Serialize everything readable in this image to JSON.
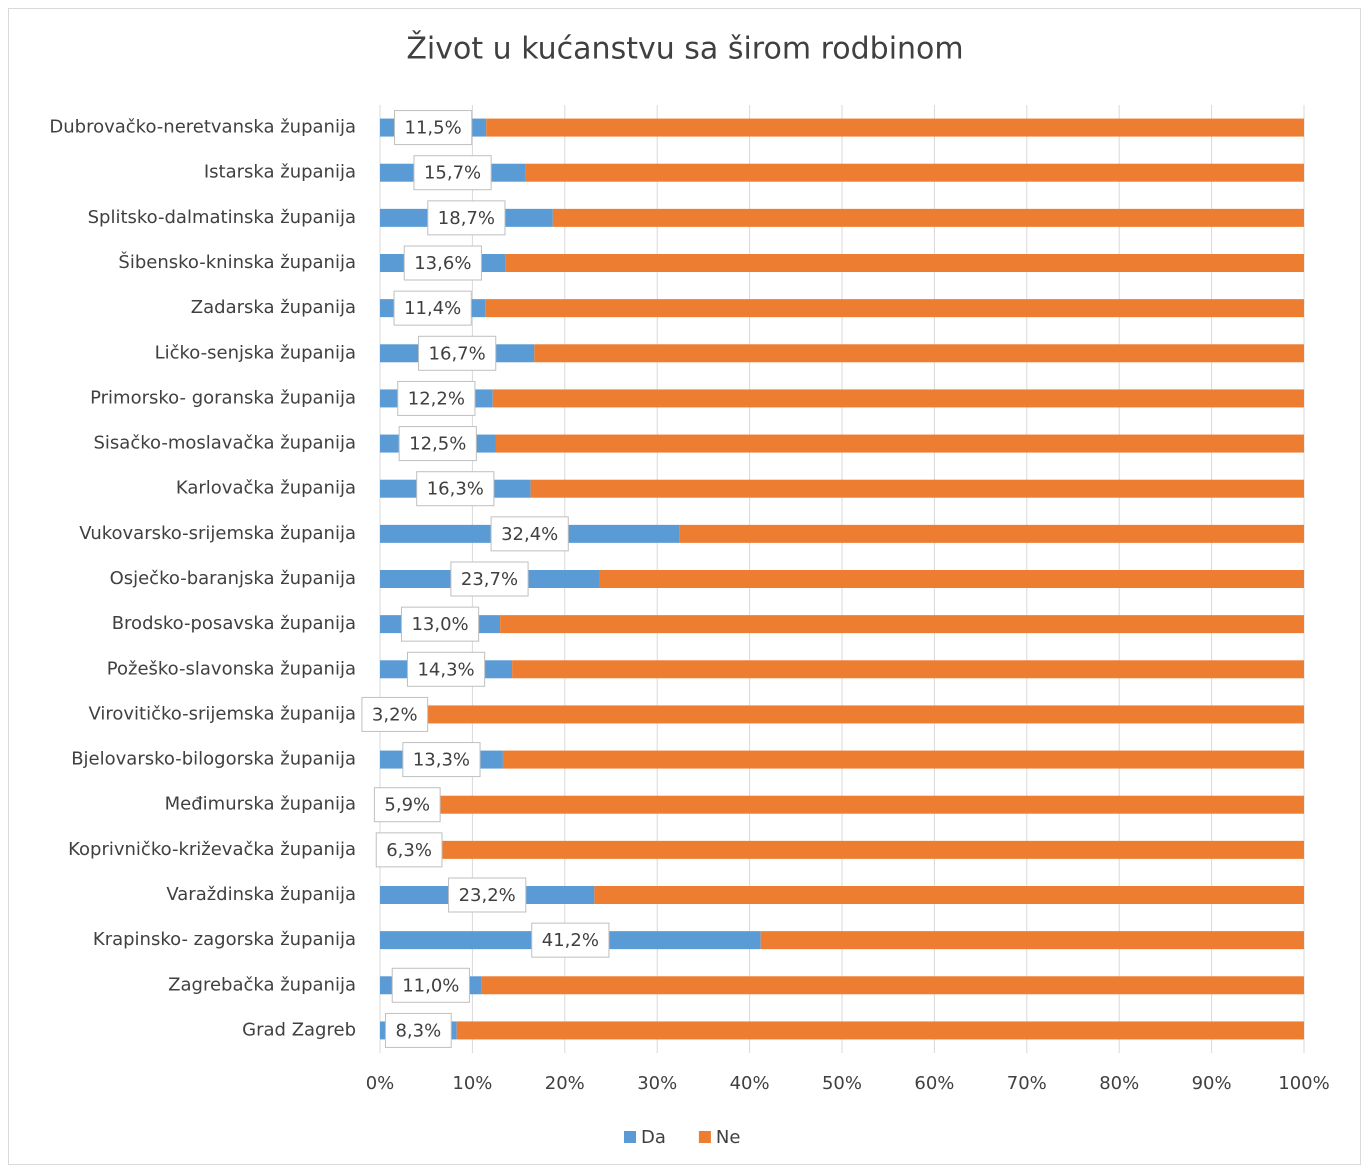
{
  "chart_data": {
    "type": "stacked_bar_horizontal",
    "title": "Život u kućanstvu sa širom rodbinom",
    "categories": [
      "Dubrovačko-neretvanska županija",
      "Istarska županija",
      "Splitsko-dalmatinska županija",
      "Šibensko-kninska županija",
      "Zadarska županija",
      "Ličko-senjska županija",
      "Primorsko- goranska županija",
      "Sisačko-moslavačka županija",
      "Karlovačka županija",
      "Vukovarsko-srijemska županija",
      "Osječko-baranjska županija",
      "Brodsko-posavska županija",
      "Požeško-slavonska županija",
      "Virovitičko-srijemska županija",
      "Bjelovarsko-bilogorska županija",
      "Međimurska županija",
      "Koprivničko-križevačka županija",
      "Varaždinska županija",
      "Krapinsko- zagorska županija",
      "Zagrebačka županija",
      "Grad Zagreb"
    ],
    "series": [
      {
        "name": "Da",
        "color": "#5b9bd5",
        "values": [
          11.5,
          15.7,
          18.7,
          13.6,
          11.4,
          16.7,
          12.2,
          12.5,
          16.3,
          32.4,
          23.7,
          13.0,
          14.3,
          3.2,
          13.3,
          5.9,
          6.3,
          23.2,
          41.2,
          11.0,
          8.3
        ],
        "value_labels": [
          "11,5%",
          "15,7%",
          "18,7%",
          "13,6%",
          "11,4%",
          "16,7%",
          "12,2%",
          "12,5%",
          "16,3%",
          "32,4%",
          "23,7%",
          "13,0%",
          "14,3%",
          "3,2%",
          "13,3%",
          "5,9%",
          "6,3%",
          "23,2%",
          "41,2%",
          "11,0%",
          "8,3%"
        ]
      },
      {
        "name": "Ne",
        "color": "#ed7d31",
        "values": [
          88.5,
          84.3,
          81.3,
          86.4,
          88.6,
          83.3,
          87.8,
          87.5,
          83.7,
          67.6,
          76.3,
          87.0,
          85.7,
          96.8,
          86.7,
          94.1,
          93.7,
          76.8,
          58.8,
          89.0,
          91.7
        ]
      }
    ],
    "xlim": [
      0,
      100
    ],
    "xticks": [
      {
        "value": 0,
        "label": "0%"
      },
      {
        "value": 10,
        "label": "10%"
      },
      {
        "value": 20,
        "label": "20%"
      },
      {
        "value": 30,
        "label": "30%"
      },
      {
        "value": 40,
        "label": "40%"
      },
      {
        "value": 50,
        "label": "50%"
      },
      {
        "value": 60,
        "label": "60%"
      },
      {
        "value": 70,
        "label": "70%"
      },
      {
        "value": 80,
        "label": "80%"
      },
      {
        "value": 90,
        "label": "90%"
      },
      {
        "value": 100,
        "label": "100%"
      }
    ],
    "grid": true,
    "legend": "bottom"
  }
}
